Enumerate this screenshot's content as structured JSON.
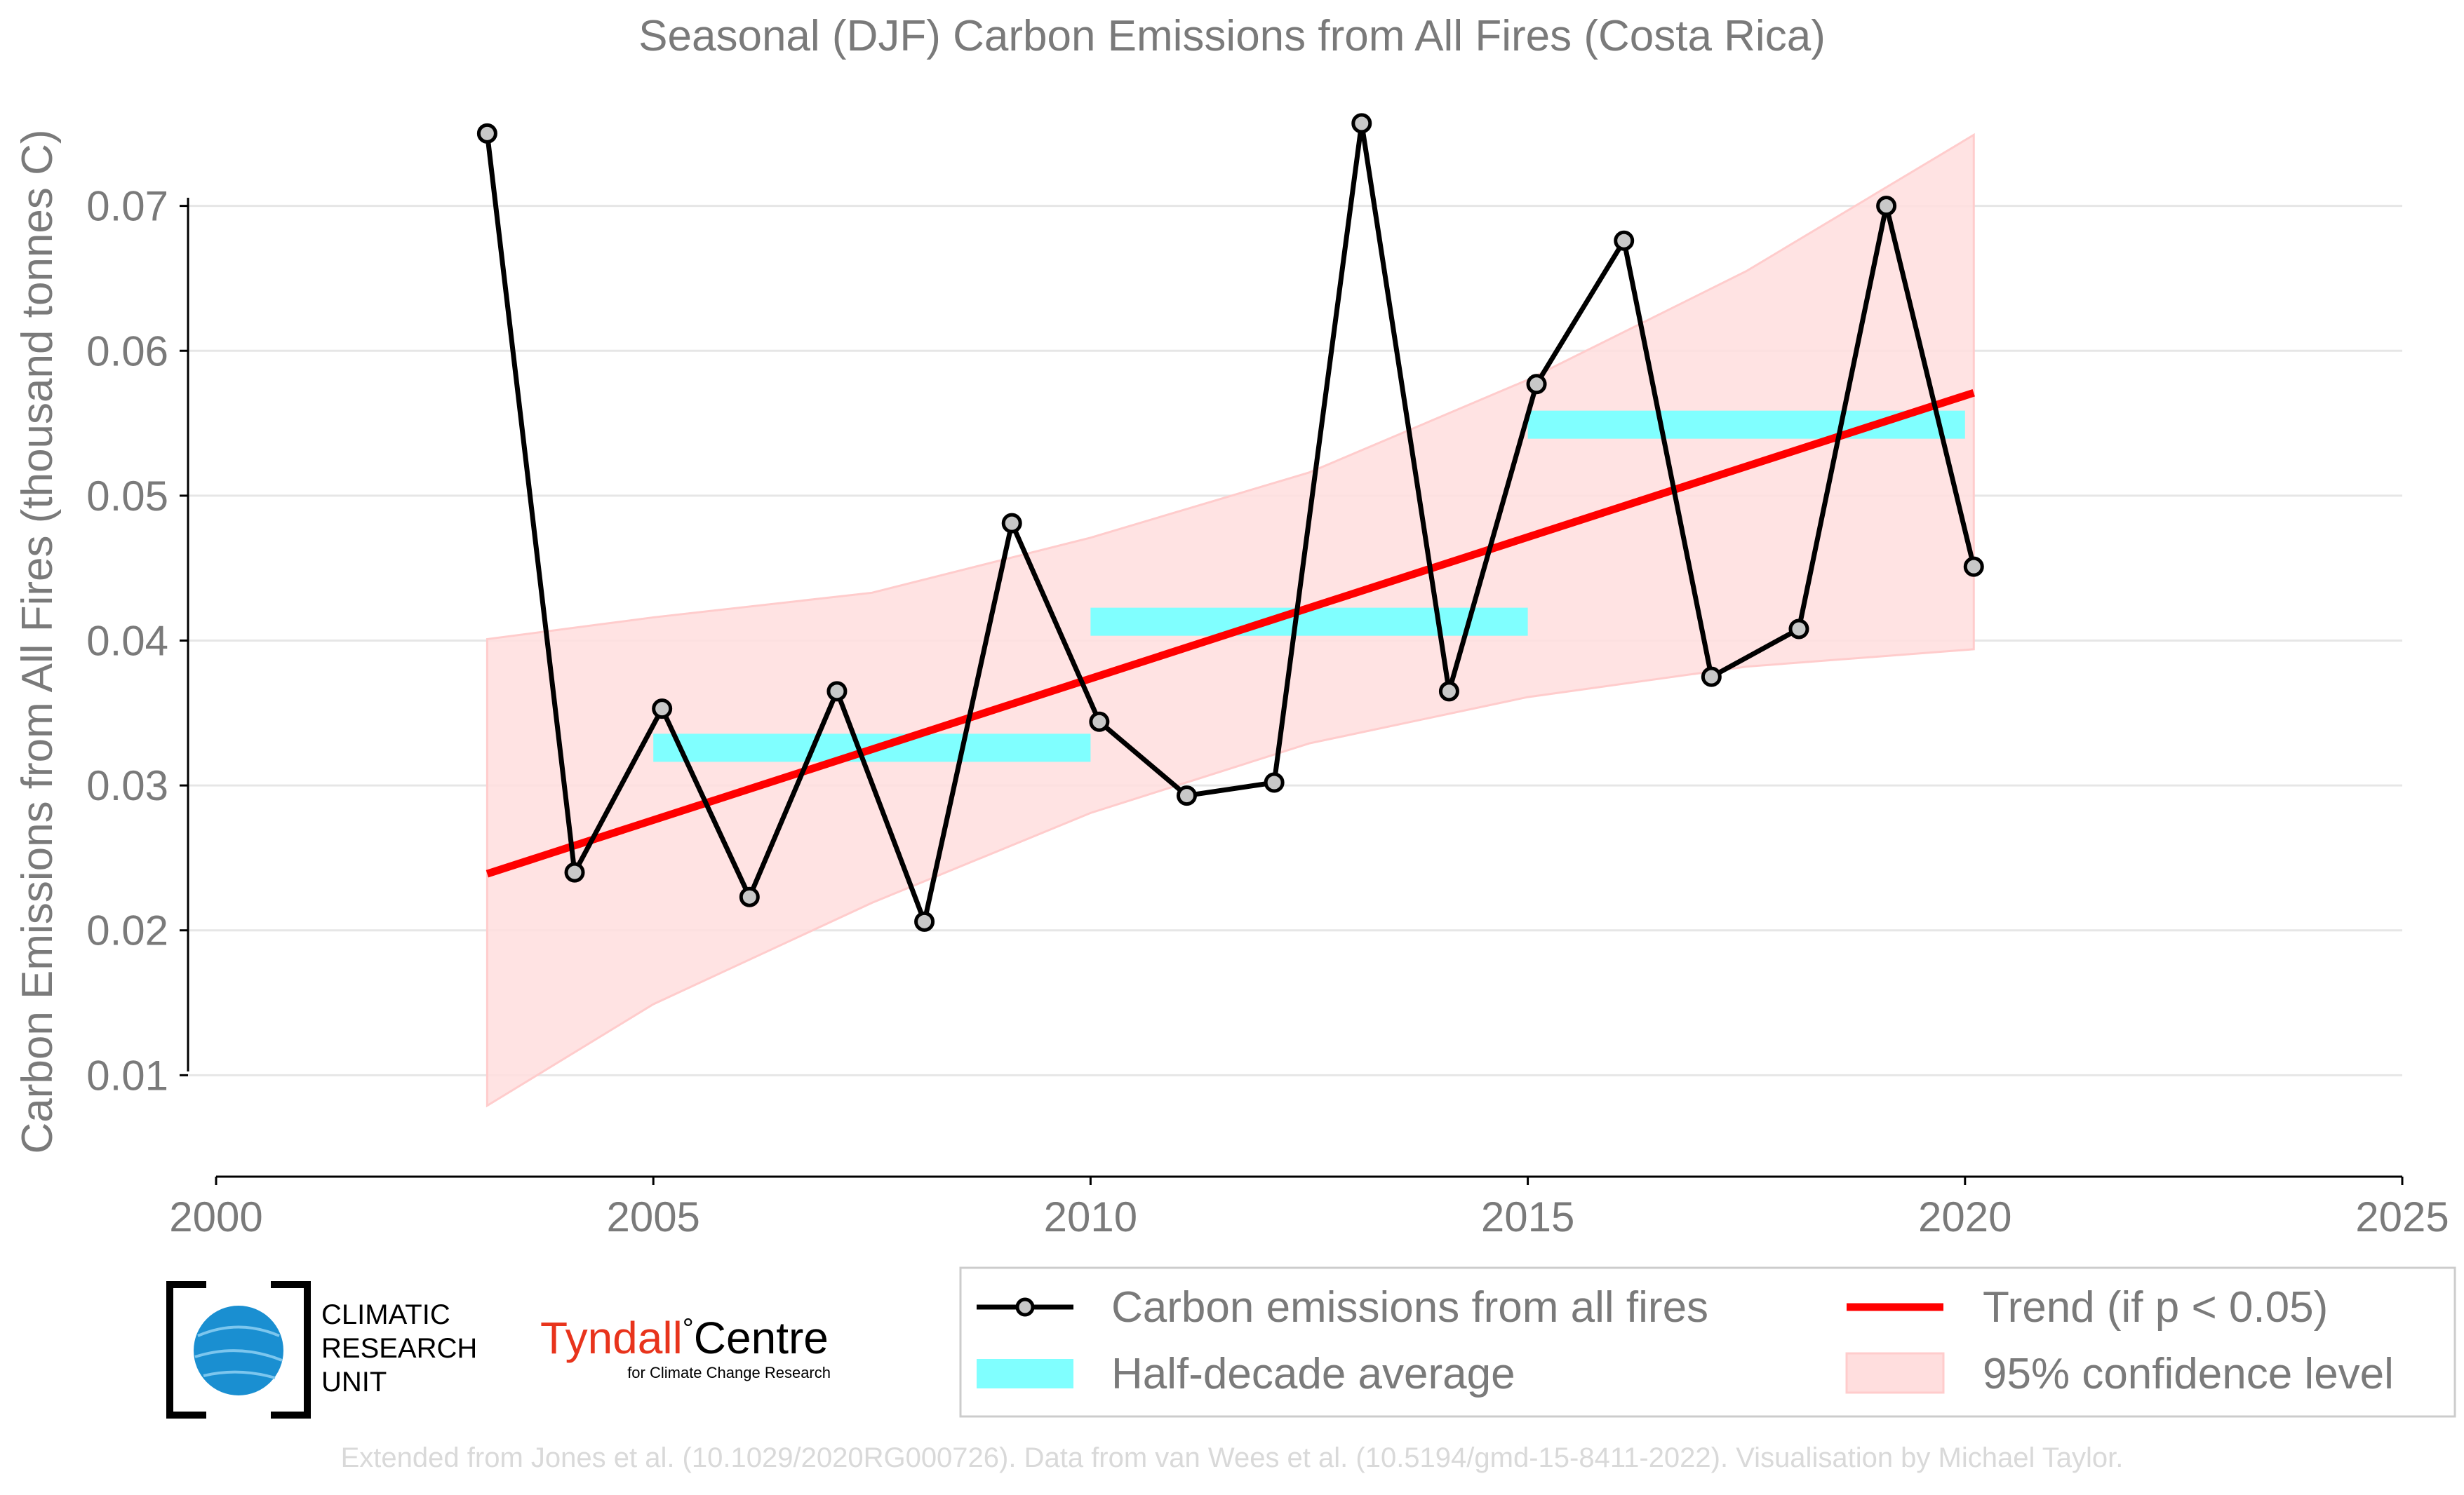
{
  "chart_data": {
    "type": "line",
    "title": "Seasonal (DJF) Carbon Emissions from All Fires (Costa Rica)",
    "xlabel": "",
    "ylabel": "Carbon Emissions from All Fires (thousand tonnes C)",
    "xlim": [
      2000,
      2025
    ],
    "ylim": [
      0.003,
      0.0785
    ],
    "x_ticks": [
      2000,
      2005,
      2010,
      2015,
      2020,
      2025
    ],
    "x_tick_labels": [
      "2000",
      "2005",
      "2010",
      "2015",
      "2020",
      "2025"
    ],
    "y_ticks": [
      0.01,
      0.02,
      0.03,
      0.04,
      0.05,
      0.06,
      0.07
    ],
    "y_tick_labels": [
      "0.01",
      "0.02",
      "0.03",
      "0.04",
      "0.05",
      "0.06",
      "0.07"
    ],
    "grid": "horizontal",
    "series": [
      {
        "name": "Carbon emissions from all fires",
        "color": "#000000",
        "x": [
          2003.1,
          2004.1,
          2005.1,
          2006.1,
          2007.1,
          2008.1,
          2009.1,
          2010.1,
          2011.1,
          2012.1,
          2013.1,
          2014.1,
          2015.1,
          2016.1,
          2017.1,
          2018.1,
          2019.1,
          2020.1
        ],
        "y": [
          0.075,
          0.024,
          0.0353,
          0.0223,
          0.0365,
          0.0206,
          0.0481,
          0.0344,
          0.0293,
          0.0302,
          0.0757,
          0.0365,
          0.0577,
          0.0676,
          0.0375,
          0.0408,
          0.07,
          0.0451
        ]
      }
    ],
    "half_decade_average": {
      "name": "Half-decade average",
      "color": "#80ffff",
      "segments": [
        {
          "x_start": 2005,
          "x_end": 2010,
          "y": 0.0326
        },
        {
          "x_start": 2010,
          "x_end": 2015,
          "y": 0.0413
        },
        {
          "x_start": 2015,
          "x_end": 2020,
          "y": 0.0549
        }
      ]
    },
    "trend": {
      "name": "Trend (if p < 0.05)",
      "color": "#ff0000",
      "x": [
        2003.1,
        2020.1
      ],
      "y": [
        0.0239,
        0.0571
      ]
    },
    "confidence_band": {
      "name": "95% confidence level",
      "color": "#ffcccc",
      "x": [
        2003.1,
        2005,
        2007.5,
        2010,
        2012.5,
        2015,
        2017.5,
        2020.1
      ],
      "upper": [
        0.0401,
        0.0416,
        0.0433,
        0.0471,
        0.0516,
        0.058,
        0.0655,
        0.0749
      ],
      "lower": [
        0.0079,
        0.0149,
        0.0219,
        0.0281,
        0.0329,
        0.0361,
        0.0382,
        0.0394
      ]
    },
    "legend": {
      "placement": "bottom-right",
      "entries": [
        "Carbon emissions from all fires",
        "Trend (if p < 0.05)",
        "Half-decade average",
        "95% confidence level"
      ]
    }
  },
  "logos": {
    "cru": {
      "lines": [
        "CLIMATIC",
        "RESEARCH",
        "UNIT"
      ]
    },
    "tyndall": {
      "name": "Tyndall",
      "degree": "°",
      "centre": "Centre",
      "subtitle": "for Climate Change Research"
    }
  },
  "credit": "Extended from Jones et al. (10.1029/2020RG000726). Data from van Wees et al. (10.5194/gmd-15-8411-2022). Visualisation by Michael Taylor.",
  "colors": {
    "text": "#7a7a7a",
    "grid": "#e6e6e6",
    "credit": "#d9d9d9",
    "tyndall_red": "#e8341c",
    "cru_blue": "#1a8fd1"
  }
}
